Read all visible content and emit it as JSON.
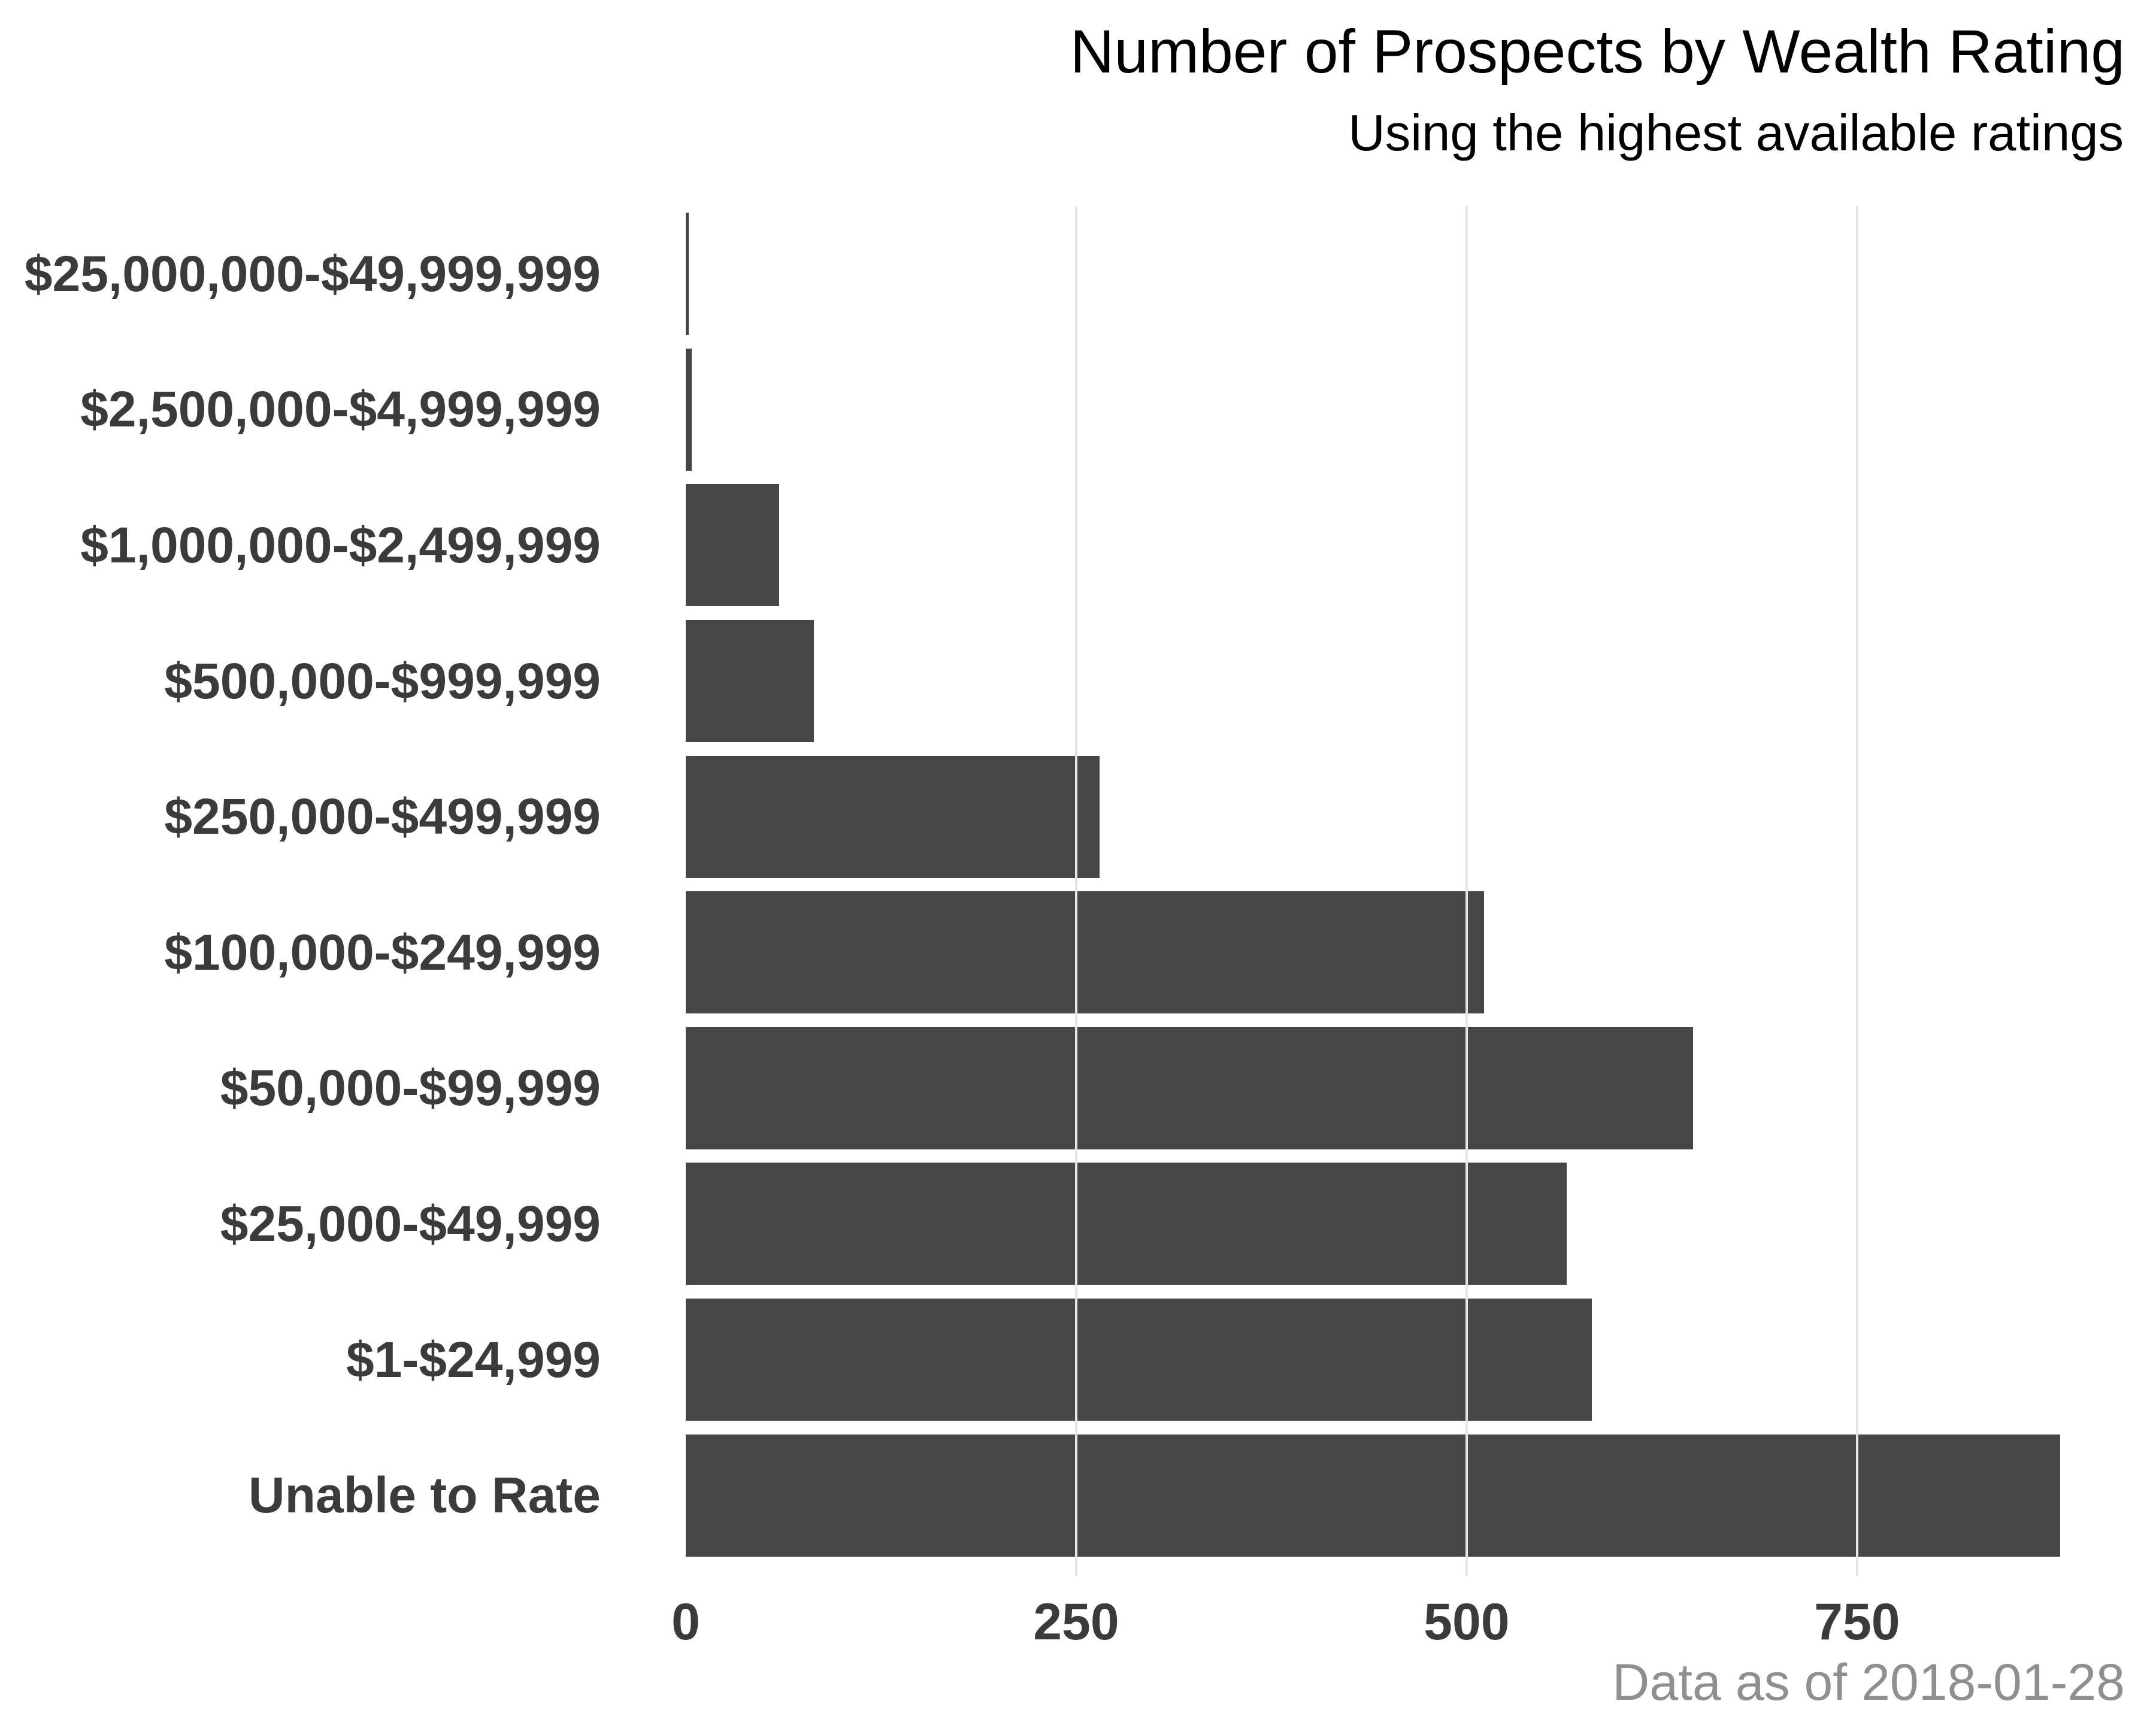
{
  "chart_data": {
    "type": "bar",
    "orientation": "horizontal",
    "title": "Number of Prospects by Wealth Rating",
    "subtitle": "Using the highest available ratings",
    "caption": "Data as of 2018-01-28",
    "categories": [
      "$25,000,000-$49,999,999",
      "$2,500,000-$4,999,999",
      "$1,000,000-$2,499,999",
      "$500,000-$999,999",
      "$250,000-$499,999",
      "$100,000-$249,999",
      "$50,000-$99,999",
      "$25,000-$49,999",
      "$1-$24,999",
      "Unable to Rate"
    ],
    "values": [
      2,
      4,
      60,
      82,
      265,
      511,
      645,
      564,
      580,
      880
    ],
    "x_ticks": [
      0,
      250,
      500,
      750
    ],
    "xlim": [
      0,
      928
    ],
    "xlabel": "",
    "ylabel": "",
    "grid": "vertical-major",
    "legend": "none",
    "colors": {
      "bar": "#464646",
      "axis_text": "#3b3b3b",
      "title_text": "#000000",
      "caption_text": "#8f8f8f",
      "gridline": "#e4e4e4",
      "background": "#ffffff"
    }
  }
}
